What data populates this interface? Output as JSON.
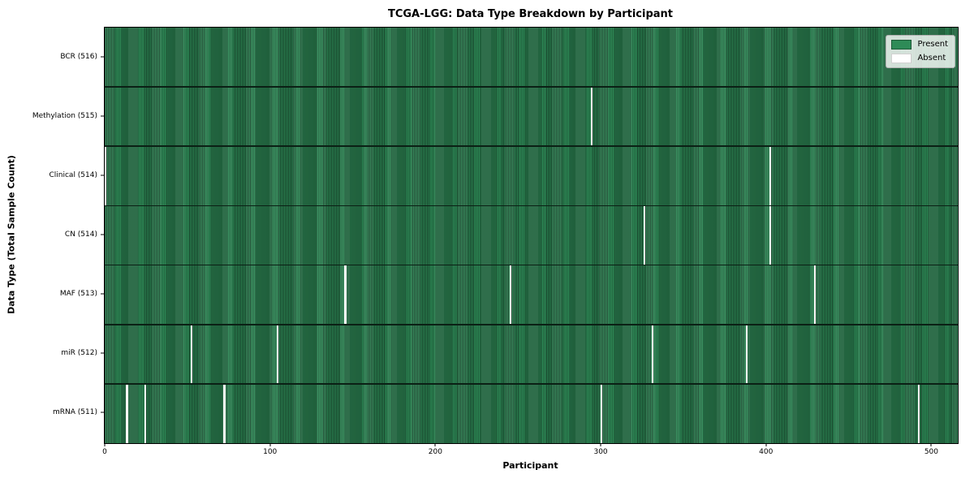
{
  "chart_data": {
    "type": "heatmap",
    "title": "TCGA-LGG: Data Type Breakdown by Participant",
    "xlabel": "Participant",
    "ylabel": "Data Type (Total Sample Count)",
    "x_ticks": [
      0,
      100,
      200,
      300,
      400,
      500
    ],
    "x_range": [
      0,
      516
    ],
    "n_participants": 516,
    "grid": false,
    "legend_position": "upper right",
    "legend": [
      {
        "label": "Present",
        "color": "#2e8b57"
      },
      {
        "label": "Absent",
        "color": "#ffffff"
      }
    ],
    "rows": [
      {
        "label": "BCR (516)",
        "data_type": "BCR",
        "present_count": 516,
        "absent_participants": []
      },
      {
        "label": "Methylation (515)",
        "data_type": "Methylation",
        "present_count": 515,
        "absent_participants": [
          294
        ]
      },
      {
        "label": "Clinical (514)",
        "data_type": "Clinical",
        "present_count": 514,
        "absent_participants": [
          0,
          402
        ]
      },
      {
        "label": "CN (514)",
        "data_type": "CN",
        "present_count": 514,
        "absent_participants": [
          326,
          402
        ]
      },
      {
        "label": "MAF (513)",
        "data_type": "MAF",
        "present_count": 513,
        "absent_participants": [
          145,
          245,
          429
        ]
      },
      {
        "label": "miR (512)",
        "data_type": "miR",
        "present_count": 512,
        "absent_participants": [
          52,
          104,
          331,
          388
        ]
      },
      {
        "label": "mRNA (511)",
        "data_type": "mRNA",
        "present_count": 511,
        "absent_participants": [
          13,
          24,
          72,
          300,
          492
        ]
      }
    ],
    "colors": {
      "present": "#2e8b57",
      "present_edge_dark": "#163f28",
      "absent": "#ffffff",
      "row_divider": "#0b2015",
      "axis": "#000000"
    }
  }
}
